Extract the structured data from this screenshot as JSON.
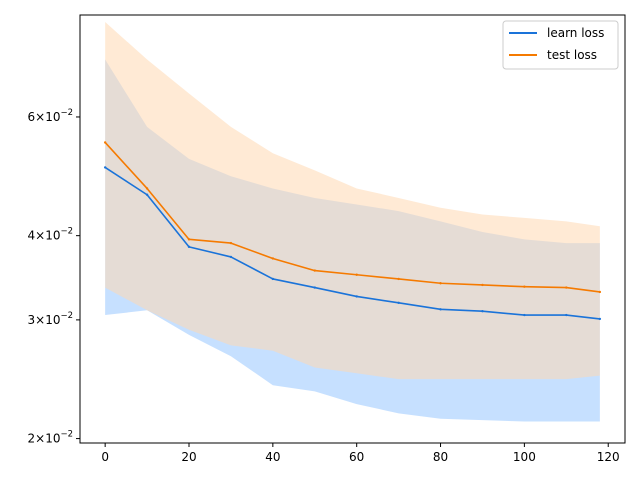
{
  "chart_data": {
    "type": "line",
    "title": "",
    "xlabel": "",
    "ylabel": "",
    "y_scale": "log",
    "xlim": [
      -6,
      124
    ],
    "ylim": [
      0.0197,
      0.085
    ],
    "grid": false,
    "legend_position": "top-right",
    "x_ticks": [
      0,
      20,
      40,
      60,
      80,
      100,
      120
    ],
    "x_tick_labels": [
      "0",
      "20",
      "40",
      "60",
      "80",
      "100",
      "120"
    ],
    "y_ticks": [
      0.02,
      0.03,
      0.04,
      0.06
    ],
    "y_tick_labels": [
      {
        "base": "2",
        "exp": "10",
        "sup": "−2"
      },
      {
        "base": "3",
        "exp": "10",
        "sup": "−2"
      },
      {
        "base": "4",
        "exp": "10",
        "sup": "−2"
      },
      {
        "base": "6",
        "exp": "10",
        "sup": "−2"
      }
    ],
    "series": [
      {
        "name": "learn loss",
        "color": "#1f77b4",
        "line_color": "#1a73d9",
        "band_color": "#b3d6ff",
        "x": [
          0,
          10,
          20,
          30,
          40,
          50,
          60,
          70,
          80,
          90,
          100,
          110,
          118
        ],
        "values": [
          0.0505,
          0.046,
          0.0385,
          0.0372,
          0.0345,
          0.0335,
          0.0325,
          0.0318,
          0.0311,
          0.0309,
          0.0305,
          0.0305,
          0.0301
        ],
        "upper": [
          0.073,
          0.058,
          0.052,
          0.049,
          0.047,
          0.0455,
          0.0445,
          0.0435,
          0.042,
          0.0405,
          0.0395,
          0.039,
          0.039
        ],
        "lower": [
          0.0305,
          0.031,
          0.0285,
          0.0265,
          0.024,
          0.0235,
          0.0225,
          0.0218,
          0.0214,
          0.0213,
          0.0212,
          0.0212,
          0.0212
        ]
      },
      {
        "name": "test loss",
        "color": "#ff7f0e",
        "line_color": "#f57a00",
        "band_color": "#ffd9b3",
        "x": [
          0,
          10,
          20,
          30,
          40,
          50,
          60,
          70,
          80,
          90,
          100,
          110,
          118
        ],
        "values": [
          0.055,
          0.047,
          0.0395,
          0.039,
          0.037,
          0.0355,
          0.035,
          0.0345,
          0.034,
          0.0338,
          0.0336,
          0.0335,
          0.033
        ],
        "upper": [
          0.083,
          0.073,
          0.065,
          0.058,
          0.053,
          0.05,
          0.047,
          0.0455,
          0.044,
          0.043,
          0.0425,
          0.042,
          0.0413
        ],
        "lower": [
          0.0335,
          0.031,
          0.029,
          0.0275,
          0.027,
          0.0255,
          0.025,
          0.0245,
          0.0245,
          0.0245,
          0.0245,
          0.0245,
          0.0248
        ]
      }
    ]
  }
}
